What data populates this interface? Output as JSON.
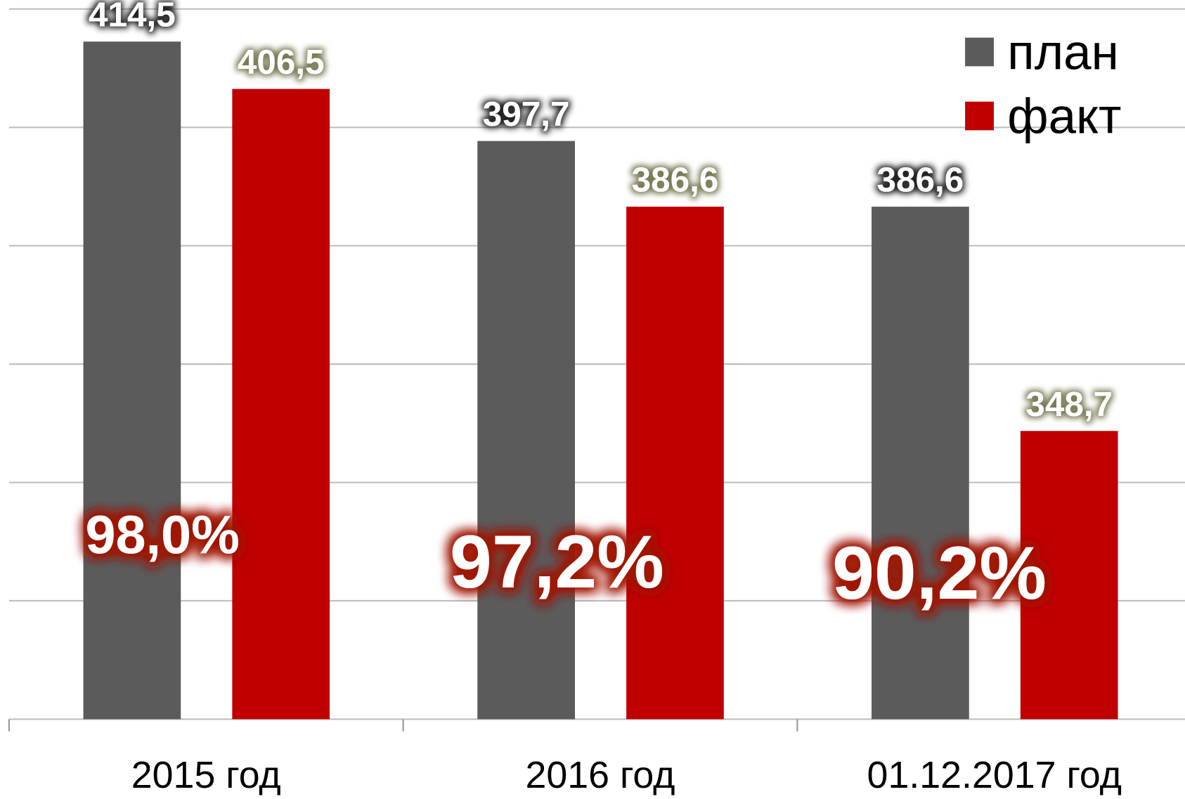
{
  "chart_data": {
    "type": "bar",
    "categories": [
      "2015 год",
      "2016 год",
      "01.12.2017 год"
    ],
    "series": [
      {
        "name": "план",
        "color": "#5b5b5b",
        "values": [
          414.5,
          397.7,
          386.6
        ],
        "value_labels": [
          "414,5",
          "397,7",
          "386,6"
        ]
      },
      {
        "name": "факт",
        "color": "#c00000",
        "values": [
          406.5,
          386.6,
          348.7
        ],
        "value_labels": [
          "406,5",
          "386,6",
          "348,7"
        ]
      }
    ],
    "annotations": [
      "98,0%",
      "97,2%",
      "90,2%"
    ],
    "ylim": [
      300,
      420
    ],
    "yticks": [
      300,
      320,
      340,
      360,
      380,
      400,
      420
    ],
    "grid": true,
    "legend": "top-right"
  }
}
